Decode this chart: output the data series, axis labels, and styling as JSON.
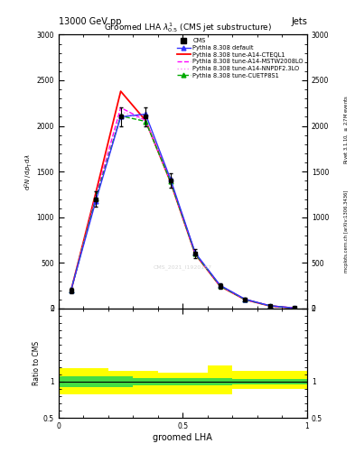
{
  "title": "Groomed LHA $\\lambda^{1}_{0.5}$ (CMS jet substructure)",
  "top_left_label": "13000 GeV pp",
  "top_right_label": "Jets",
  "right_label_top": "Rivet 3.1.10, $\\geq$ 2.7M events",
  "right_label_bottom": "mcplots.cern.ch [arXiv:1306.3436]",
  "watermark": "CMS_2021_I1920187",
  "xlabel": "groomed LHA",
  "ylabel_main": "$\\mathrm{d}^2N$ / $\\mathrm{d}p_\\mathrm{T}$ $\\mathrm{d}\\lambda$",
  "ylabel_ratio": "Ratio to CMS",
  "xlim": [
    0,
    1
  ],
  "ylim_main": [
    0,
    3000
  ],
  "ylim_ratio": [
    0.5,
    2.0
  ],
  "x_data": [
    0.05,
    0.15,
    0.25,
    0.35,
    0.45,
    0.55,
    0.65,
    0.75,
    0.85,
    0.95
  ],
  "cms_data": [
    200,
    1200,
    2100,
    2100,
    1400,
    600,
    250,
    100,
    30,
    5
  ],
  "cms_errors": [
    30,
    80,
    100,
    100,
    80,
    50,
    30,
    20,
    10,
    3
  ],
  "pythia_default": [
    200,
    1180,
    2100,
    2130,
    1420,
    610,
    255,
    103,
    31,
    5
  ],
  "pythia_cteql1": [
    195,
    1270,
    2380,
    2060,
    1390,
    595,
    245,
    98,
    29,
    4
  ],
  "pythia_mstw": [
    198,
    1230,
    2200,
    2060,
    1400,
    600,
    250,
    100,
    30,
    5
  ],
  "pythia_nnpdf": [
    198,
    1220,
    2160,
    2055,
    1405,
    605,
    252,
    101,
    30,
    5
  ],
  "pythia_cuetp": [
    200,
    1210,
    2110,
    2050,
    1395,
    598,
    248,
    99,
    30,
    4
  ],
  "ratio_yellow_low": [
    0.82,
    0.82,
    0.82,
    0.82,
    0.82,
    0.82,
    0.82,
    0.9,
    0.9,
    0.9
  ],
  "ratio_yellow_high": [
    1.18,
    1.18,
    1.15,
    1.15,
    1.12,
    1.12,
    1.22,
    1.15,
    1.15,
    1.15
  ],
  "ratio_green_low": [
    0.93,
    0.93,
    0.93,
    0.95,
    0.95,
    0.95,
    0.95,
    0.96,
    0.96,
    0.96
  ],
  "ratio_green_high": [
    1.07,
    1.07,
    1.07,
    1.05,
    1.05,
    1.05,
    1.05,
    1.04,
    1.04,
    1.04
  ],
  "bin_edges": [
    0.0,
    0.1,
    0.2,
    0.3,
    0.4,
    0.5,
    0.6,
    0.7,
    0.8,
    0.9,
    1.0
  ],
  "yticks_main": [
    0,
    500,
    1000,
    1500,
    2000,
    2500,
    3000
  ],
  "colors": {
    "cms": "#000000",
    "default": "#3333ff",
    "cteql1": "#ff0000",
    "mstw": "#ff00ff",
    "nnpdf": "#ff88ff",
    "cuetp": "#00aa00"
  },
  "legend_labels": [
    "CMS",
    "Pythia 8.308 default",
    "Pythia 8.308 tune-A14-CTEQL1",
    "Pythia 8.308 tune-A14-MSTW2008LO",
    "Pythia 8.308 tune-A14-NNPDF2.3LO",
    "Pythia 8.308 tune-CUETP8S1"
  ]
}
